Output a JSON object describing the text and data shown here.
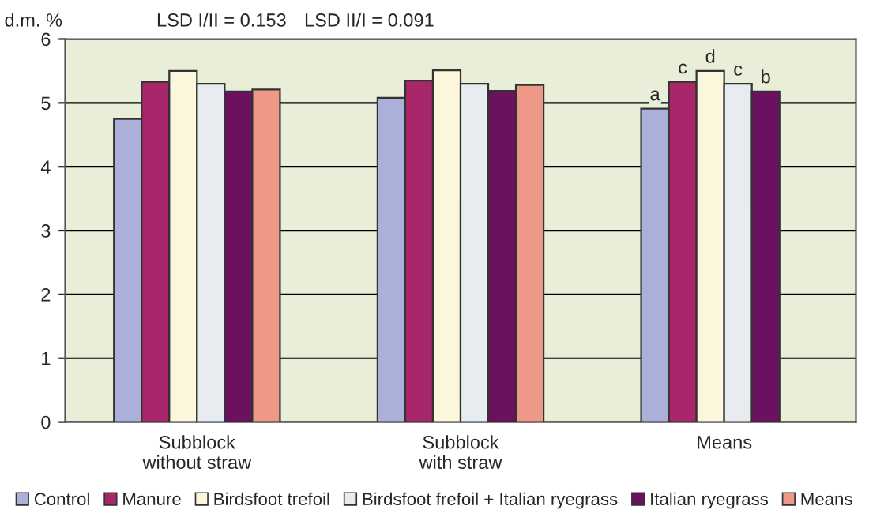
{
  "chart_data": {
    "type": "bar",
    "categories": [
      "Subblock\nwithout straw",
      "Subblock\nwith straw",
      "Means"
    ],
    "series": [
      {
        "name": "Control",
        "color": "#aab0d8",
        "values": [
          4.75,
          5.08,
          4.91
        ],
        "value_labels": [
          null,
          null,
          "a"
        ]
      },
      {
        "name": "Manure",
        "color": "#a8266a",
        "values": [
          5.33,
          5.35,
          5.33
        ],
        "value_labels": [
          null,
          null,
          "c"
        ]
      },
      {
        "name": "Birdsfoot trefoil",
        "color": "#fbf6dc",
        "values": [
          5.5,
          5.51,
          5.5
        ],
        "value_labels": [
          null,
          null,
          "d"
        ]
      },
      {
        "name": "Birdsfoot frefoil + Italian ryegrass",
        "color": "#e6ecf0",
        "values": [
          5.3,
          5.3,
          5.3
        ],
        "value_labels": [
          null,
          null,
          "c"
        ]
      },
      {
        "name": "Italian ryegrass",
        "color": "#6c1060",
        "values": [
          5.18,
          5.19,
          5.18
        ],
        "value_labels": [
          null,
          null,
          "b"
        ]
      },
      {
        "name": "Means",
        "color": "#ee9888",
        "values": [
          5.21,
          5.28,
          null
        ]
      }
    ],
    "ylabel": "d.m. %",
    "ylim": [
      0,
      6
    ],
    "yticks": [
      0,
      1,
      2,
      3,
      4,
      5,
      6
    ],
    "grid": "y",
    "legend": "bottom",
    "annotations": [
      "LSD I/II = 0.153",
      "LSD II/I = 0.091"
    ]
  }
}
